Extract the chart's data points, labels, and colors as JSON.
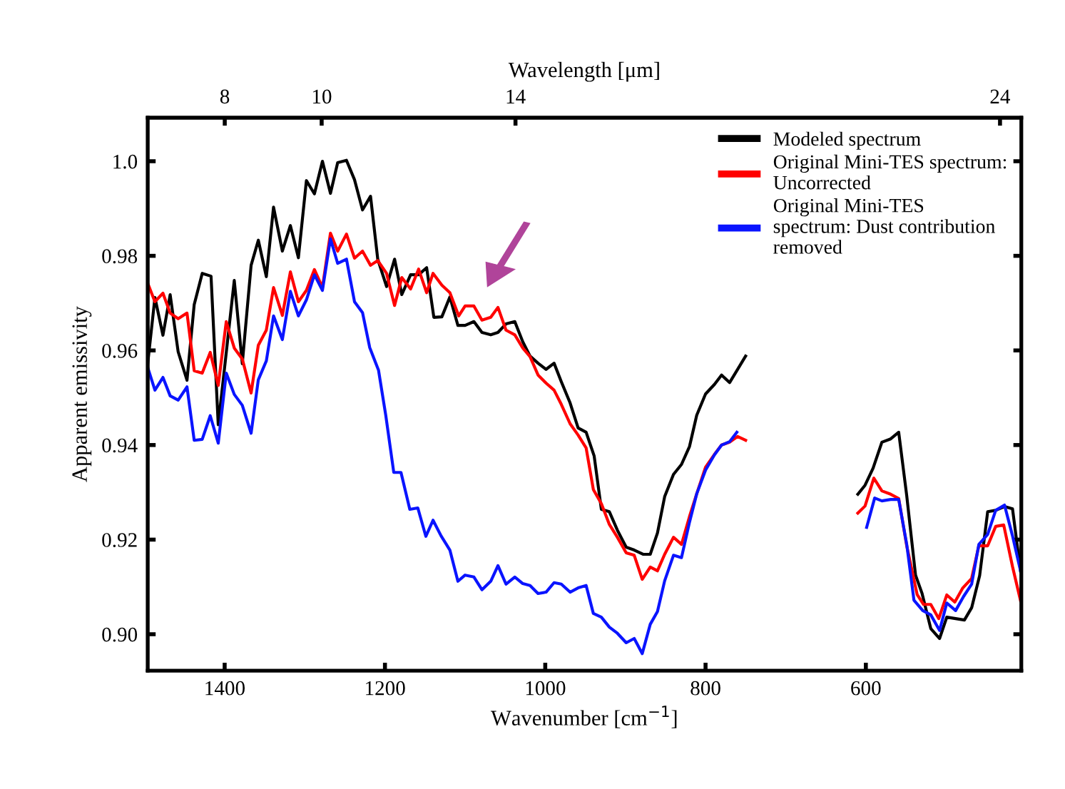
{
  "chart_data": {
    "type": "line",
    "xlabel": "Wavenumber [cm$^{−1}$]",
    "ylabel": "Apparent emissivity",
    "x2label": "Wavelength [μm]",
    "xlim": [
      1496,
      406
    ],
    "xticks": [
      1400,
      1200,
      1000,
      800,
      600
    ],
    "x2lim": [
      6.41,
      24.44
    ],
    "x2ticks": [
      8,
      10,
      14,
      24
    ],
    "ylim": [
      0.8923,
      1.0092
    ],
    "yticks": [
      {
        "value": 0.9,
        "label": "0.90"
      },
      {
        "value": 0.92,
        "label": "0.92"
      },
      {
        "value": 0.94,
        "label": "0.94"
      },
      {
        "value": 0.96,
        "label": "0.96"
      },
      {
        "value": 0.98,
        "label": "0.98"
      },
      {
        "value": 1.0,
        "label": "1.0"
      }
    ],
    "legend": "top right",
    "marker": "none",
    "line_style": "solid",
    "series": [
      {
        "name": "Modeled spectrum",
        "color": "#000000",
        "x": [
          1496,
          1487,
          1477,
          1468,
          1458,
          1447,
          1438,
          1428,
          1417,
          1408,
          1388,
          1378,
          1367,
          1358,
          1348,
          1339,
          1328,
          1318,
          1308,
          1298,
          1288,
          1278,
          1268,
          1259,
          1248,
          1238,
          1228,
          1218,
          1209,
          1198,
          1188,
          1179,
          1168,
          1158,
          1148,
          1139,
          1129,
          1119,
          1109,
          1100,
          1089,
          1079,
          1068,
          1059,
          1049,
          1038,
          1028,
          1019,
          1009,
          999,
          989,
          980,
          969,
          959,
          949,
          939,
          930,
          920,
          910,
          899,
          889,
          878,
          869,
          860,
          851,
          840,
          830,
          820,
          811,
          800,
          789,
          780,
          770,
          750,
          680,
          610,
          601,
          591,
          580,
          569,
          559,
          549,
          538,
          530,
          519,
          508,
          499,
          488,
          477,
          468,
          458,
          448,
          438,
          427,
          417,
          407
        ],
        "values": [
          0.9572,
          0.9712,
          0.9632,
          0.9718,
          0.9597,
          0.9537,
          0.9697,
          0.9763,
          0.9757,
          0.9443,
          0.9748,
          0.9572,
          0.978,
          0.9833,
          0.9756,
          0.9903,
          0.981,
          0.9864,
          0.9796,
          0.9959,
          0.9931,
          1.0,
          0.9932,
          0.9997,
          1.0002,
          0.9961,
          0.9897,
          0.9926,
          0.9793,
          0.9735,
          0.9793,
          0.9718,
          0.976,
          0.976,
          0.9775,
          0.967,
          0.9671,
          0.9713,
          0.9653,
          0.9653,
          0.9661,
          0.9638,
          0.9633,
          0.9638,
          0.9656,
          0.9661,
          0.9618,
          0.9588,
          0.9573,
          0.956,
          0.9573,
          0.9534,
          0.9489,
          0.9436,
          0.9427,
          0.9377,
          0.9264,
          0.9259,
          0.922,
          0.9184,
          0.9178,
          0.9169,
          0.9169,
          0.9214,
          0.9291,
          0.9338,
          0.9359,
          0.9397,
          0.9463,
          0.9508,
          0.9528,
          0.9548,
          0.9532,
          0.9588,
          null,
          0.9296,
          0.9315,
          0.9351,
          0.9406,
          0.9413,
          0.9427,
          0.9293,
          0.9125,
          0.9087,
          0.9012,
          0.8991,
          0.9036,
          0.9033,
          0.903,
          0.9056,
          0.9124,
          0.9259,
          0.9262,
          0.927,
          0.9265,
          0.9134
        ]
      },
      {
        "name": "Original Mini-TES spectrum:\nUncorrected",
        "color": "#ff0000",
        "x": [
          1496,
          1487,
          1477,
          1468,
          1458,
          1447,
          1438,
          1428,
          1418,
          1408,
          1398,
          1388,
          1378,
          1367,
          1358,
          1348,
          1339,
          1328,
          1318,
          1308,
          1298,
          1288,
          1278,
          1268,
          1259,
          1248,
          1238,
          1228,
          1218,
          1209,
          1198,
          1188,
          1179,
          1168,
          1158,
          1148,
          1140,
          1129,
          1119,
          1108,
          1100,
          1089,
          1079,
          1068,
          1059,
          1049,
          1038,
          1028,
          1019,
          1009,
          999,
          989,
          980,
          969,
          959,
          949,
          940,
          930,
          920,
          910,
          899,
          889,
          879,
          869,
          860,
          851,
          840,
          830,
          820,
          811,
          800,
          789,
          780,
          770,
          760,
          750,
          680,
          610,
          601,
          590,
          580,
          569,
          559,
          549,
          536,
          528,
          519,
          509,
          499,
          489,
          479,
          468,
          459,
          448,
          438,
          428,
          417,
          407
        ],
        "values": [
          0.9742,
          0.9703,
          0.9721,
          0.9679,
          0.9667,
          0.9679,
          0.9557,
          0.9552,
          0.9596,
          0.9526,
          0.9661,
          0.9605,
          0.9582,
          0.951,
          0.9611,
          0.9643,
          0.9733,
          0.9674,
          0.9766,
          0.9703,
          0.9727,
          0.9771,
          0.9733,
          0.9848,
          0.981,
          0.9846,
          0.9795,
          0.981,
          0.978,
          0.979,
          0.9763,
          0.9695,
          0.9754,
          0.973,
          0.9772,
          0.9722,
          0.9763,
          0.9738,
          0.9722,
          0.9673,
          0.9694,
          0.9694,
          0.9664,
          0.967,
          0.9691,
          0.9643,
          0.9633,
          0.9605,
          0.9587,
          0.9548,
          0.9531,
          0.9516,
          0.9486,
          0.9445,
          0.9421,
          0.9394,
          0.9306,
          0.9276,
          0.9232,
          0.9205,
          0.9172,
          0.9167,
          0.9116,
          0.9142,
          0.9134,
          0.9169,
          0.9205,
          0.919,
          0.9249,
          0.9297,
          0.9353,
          0.938,
          0.94,
          0.9406,
          0.9418,
          0.941,
          null,
          0.9256,
          0.9271,
          0.933,
          0.9303,
          0.9296,
          0.9287,
          0.9187,
          0.9084,
          0.9063,
          0.9063,
          0.9033,
          0.9083,
          0.9068,
          0.9098,
          0.9118,
          0.9187,
          0.9187,
          0.9228,
          0.9231,
          0.9143,
          0.9071
        ]
      },
      {
        "name": "Original Mini-TES\nspectrum: Dust contribution\nremoved",
        "color": "#0a14ff",
        "x": [
          1496,
          1487,
          1477,
          1468,
          1458,
          1447,
          1438,
          1428,
          1418,
          1408,
          1398,
          1388,
          1378,
          1367,
          1358,
          1348,
          1339,
          1328,
          1318,
          1308,
          1298,
          1288,
          1278,
          1268,
          1259,
          1248,
          1238,
          1228,
          1219,
          1208,
          1199,
          1189,
          1180,
          1169,
          1159,
          1149,
          1140,
          1130,
          1119,
          1109,
          1100,
          1089,
          1079,
          1068,
          1059,
          1049,
          1038,
          1028,
          1019,
          1009,
          999,
          989,
          980,
          969,
          959,
          949,
          940,
          930,
          920,
          910,
          899,
          889,
          879,
          869,
          860,
          851,
          840,
          830,
          820,
          811,
          800,
          789,
          780,
          770,
          761,
          680,
          599,
          589,
          580,
          569,
          559,
          549,
          540,
          529,
          519,
          508,
          499,
          488,
          478,
          468,
          459,
          448,
          438,
          427,
          417,
          407
        ],
        "values": [
          0.9564,
          0.9516,
          0.9543,
          0.9504,
          0.9495,
          0.9523,
          0.941,
          0.9412,
          0.9462,
          0.9404,
          0.9552,
          0.9507,
          0.9484,
          0.9425,
          0.9538,
          0.9578,
          0.9673,
          0.9623,
          0.9725,
          0.9673,
          0.9707,
          0.976,
          0.9727,
          0.9836,
          0.9784,
          0.9793,
          0.9703,
          0.968,
          0.9606,
          0.9558,
          0.9463,
          0.9342,
          0.9342,
          0.9264,
          0.9267,
          0.9207,
          0.9241,
          0.9208,
          0.9178,
          0.9112,
          0.9125,
          0.9121,
          0.9094,
          0.9112,
          0.9145,
          0.9106,
          0.9121,
          0.9107,
          0.9103,
          0.9086,
          0.9089,
          0.9109,
          0.9106,
          0.9089,
          0.9098,
          0.9103,
          0.9044,
          0.9036,
          0.9015,
          0.9002,
          0.8982,
          0.8991,
          0.8959,
          0.9021,
          0.9048,
          0.9113,
          0.9167,
          0.9162,
          0.9237,
          0.9297,
          0.9347,
          0.9379,
          0.94,
          0.9407,
          0.9427,
          null,
          0.9226,
          0.9288,
          0.9282,
          0.9285,
          0.9285,
          0.919,
          0.9072,
          0.905,
          0.9041,
          0.9008,
          0.9066,
          0.905,
          0.908,
          0.9106,
          0.919,
          0.9211,
          0.9262,
          0.9273,
          0.9208,
          0.9134
        ]
      }
    ]
  }
}
